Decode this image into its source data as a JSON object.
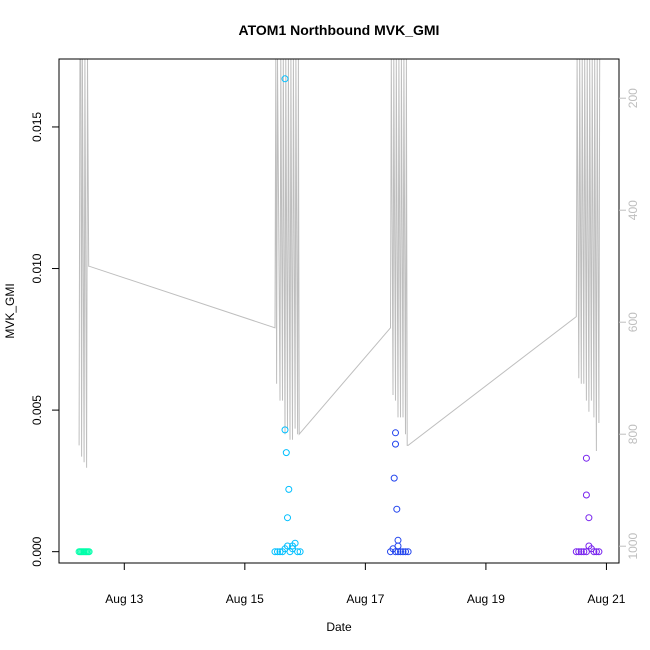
{
  "chart_data": {
    "type": "scatter",
    "title": "ATOM1 Northbound MVK_GMI",
    "xlabel": "Date",
    "ylabel": "MVK_GMI",
    "xlim": [
      "2024-08-11T22:00",
      "2024-08-21T05:00"
    ],
    "ylim": [
      -0.0004,
      0.0174
    ],
    "x_tick_labels": [
      "Aug 13",
      "Aug 15",
      "Aug 17",
      "Aug 19",
      "Aug 21"
    ],
    "x_ticks": [
      "2024-08-13T00:00",
      "2024-08-15T00:00",
      "2024-08-17T00:00",
      "2024-08-19T00:00",
      "2024-08-21T00:00"
    ],
    "y_ticks": [
      0.0,
      0.005,
      0.01,
      0.015
    ],
    "y_tick_labels": [
      "0.000",
      "0.005",
      "0.010",
      "0.015"
    ],
    "grid": false,
    "legend": "none",
    "series": [
      {
        "color": "#00ffaa",
        "points": [
          [
            "2024-08-12T06:00",
            0.0
          ],
          [
            "2024-08-12T06:30",
            0.0
          ],
          [
            "2024-08-12T07:00",
            0.0
          ],
          [
            "2024-08-12T07:30",
            0.0
          ],
          [
            "2024-08-12T08:00",
            0.0
          ],
          [
            "2024-08-12T08:30",
            0.0
          ],
          [
            "2024-08-12T09:00",
            0.0
          ],
          [
            "2024-08-12T09:30",
            0.0
          ],
          [
            "2024-08-12T10:00",
            0.0
          ]
        ]
      },
      {
        "color": "#00bfff",
        "points": [
          [
            "2024-08-15T12:00",
            0.0
          ],
          [
            "2024-08-15T13:00",
            0.0
          ],
          [
            "2024-08-15T14:00",
            0.0
          ],
          [
            "2024-08-15T15:00",
            0.0
          ],
          [
            "2024-08-15T16:00",
            0.0001
          ],
          [
            "2024-08-15T17:00",
            0.0002
          ],
          [
            "2024-08-15T18:00",
            0.0
          ],
          [
            "2024-08-15T19:00",
            0.0001
          ],
          [
            "2024-08-15T20:00",
            0.0003
          ],
          [
            "2024-08-15T21:00",
            0.0
          ],
          [
            "2024-08-15T22:00",
            0.0
          ],
          [
            "2024-08-15T16:00",
            0.0043
          ],
          [
            "2024-08-15T16:30",
            0.0035
          ],
          [
            "2024-08-15T17:30",
            0.0022
          ],
          [
            "2024-08-15T17:00",
            0.0012
          ],
          [
            "2024-08-15T16:00",
            0.0167
          ],
          [
            "2024-08-15T19:00",
            0.0002
          ]
        ]
      },
      {
        "color": "#2244ee",
        "points": [
          [
            "2024-08-17T10:00",
            0.0
          ],
          [
            "2024-08-17T11:00",
            0.0001
          ],
          [
            "2024-08-17T12:00",
            0.0
          ],
          [
            "2024-08-17T13:00",
            0.0
          ],
          [
            "2024-08-17T14:00",
            0.0
          ],
          [
            "2024-08-17T15:00",
            0.0
          ],
          [
            "2024-08-17T16:00",
            0.0
          ],
          [
            "2024-08-17T17:00",
            0.0
          ],
          [
            "2024-08-17T12:00",
            0.0042
          ],
          [
            "2024-08-17T12:00",
            0.0038
          ],
          [
            "2024-08-17T11:30",
            0.0026
          ],
          [
            "2024-08-17T12:30",
            0.0015
          ],
          [
            "2024-08-17T13:00",
            0.0004
          ],
          [
            "2024-08-17T13:00",
            0.0002
          ]
        ]
      },
      {
        "color": "#7722ee",
        "points": [
          [
            "2024-08-20T12:00",
            0.0
          ],
          [
            "2024-08-20T13:00",
            0.0
          ],
          [
            "2024-08-20T14:00",
            0.0
          ],
          [
            "2024-08-20T15:00",
            0.0
          ],
          [
            "2024-08-20T16:00",
            0.0
          ],
          [
            "2024-08-20T17:00",
            0.0002
          ],
          [
            "2024-08-20T18:00",
            0.0001
          ],
          [
            "2024-08-20T19:00",
            0.0
          ],
          [
            "2024-08-20T20:00",
            0.0
          ],
          [
            "2024-08-20T21:00",
            0.0
          ],
          [
            "2024-08-20T16:00",
            0.0033
          ],
          [
            "2024-08-20T16:00",
            0.002
          ],
          [
            "2024-08-20T17:00",
            0.0012
          ]
        ]
      }
    ],
    "secondary_axis": {
      "side": "right",
      "color": "#bebebe",
      "ylim": [
        1030,
        130
      ],
      "ticks": [
        200,
        400,
        600,
        800,
        1000
      ],
      "tick_labels": [
        "200",
        "400",
        "600",
        "800",
        "1000"
      ],
      "line": [
        [
          "2024-08-12T06:00",
          820
        ],
        [
          "2024-08-12T06:20",
          130
        ],
        [
          "2024-08-12T06:40",
          130
        ],
        [
          "2024-08-12T07:00",
          840
        ],
        [
          "2024-08-12T07:20",
          130
        ],
        [
          "2024-08-12T08:00",
          850
        ],
        [
          "2024-08-12T08:20",
          130
        ],
        [
          "2024-08-12T09:00",
          860
        ],
        [
          "2024-08-12T09:20",
          130
        ],
        [
          "2024-08-12T09:50",
          500
        ],
        [
          "2024-08-12T10:00",
          500
        ],
        [
          "2024-08-15T12:00",
          610
        ],
        [
          "2024-08-15T12:20",
          130
        ],
        [
          "2024-08-15T12:40",
          710
        ],
        [
          "2024-08-15T13:00",
          130
        ],
        [
          "2024-08-15T14:00",
          740
        ],
        [
          "2024-08-15T14:20",
          130
        ],
        [
          "2024-08-15T15:00",
          740
        ],
        [
          "2024-08-15T15:20",
          130
        ],
        [
          "2024-08-15T16:00",
          800
        ],
        [
          "2024-08-15T16:20",
          130
        ],
        [
          "2024-08-15T17:00",
          790
        ],
        [
          "2024-08-15T17:20",
          130
        ],
        [
          "2024-08-15T18:00",
          810
        ],
        [
          "2024-08-15T18:20",
          130
        ],
        [
          "2024-08-15T19:00",
          810
        ],
        [
          "2024-08-15T19:20",
          130
        ],
        [
          "2024-08-15T20:00",
          790
        ],
        [
          "2024-08-15T20:20",
          130
        ],
        [
          "2024-08-15T21:00",
          800
        ],
        [
          "2024-08-15T21:20",
          130
        ],
        [
          "2024-08-15T21:40",
          800
        ],
        [
          "2024-08-17T10:00",
          610
        ],
        [
          "2024-08-17T10:20",
          130
        ],
        [
          "2024-08-17T11:00",
          730
        ],
        [
          "2024-08-17T11:20",
          130
        ],
        [
          "2024-08-17T12:00",
          740
        ],
        [
          "2024-08-17T12:20",
          130
        ],
        [
          "2024-08-17T13:00",
          770
        ],
        [
          "2024-08-17T13:20",
          130
        ],
        [
          "2024-08-17T14:00",
          770
        ],
        [
          "2024-08-17T14:20",
          130
        ],
        [
          "2024-08-17T15:00",
          770
        ],
        [
          "2024-08-17T15:20",
          130
        ],
        [
          "2024-08-17T16:00",
          800
        ],
        [
          "2024-08-17T16:20",
          130
        ],
        [
          "2024-08-17T16:40",
          820
        ],
        [
          "2024-08-17T17:00",
          820
        ],
        [
          "2024-08-20T12:00",
          590
        ],
        [
          "2024-08-20T12:20",
          130
        ],
        [
          "2024-08-20T13:00",
          700
        ],
        [
          "2024-08-20T13:20",
          130
        ],
        [
          "2024-08-20T14:00",
          710
        ],
        [
          "2024-08-20T14:20",
          130
        ],
        [
          "2024-08-20T15:00",
          710
        ],
        [
          "2024-08-20T15:20",
          130
        ],
        [
          "2024-08-20T16:00",
          740
        ],
        [
          "2024-08-20T16:20",
          130
        ],
        [
          "2024-08-20T17:00",
          760
        ],
        [
          "2024-08-20T17:20",
          130
        ],
        [
          "2024-08-20T18:00",
          740
        ],
        [
          "2024-08-20T18:20",
          130
        ],
        [
          "2024-08-20T19:00",
          770
        ],
        [
          "2024-08-20T19:20",
          130
        ],
        [
          "2024-08-20T20:00",
          830
        ],
        [
          "2024-08-20T20:20",
          130
        ],
        [
          "2024-08-20T21:00",
          780
        ],
        [
          "2024-08-20T21:20",
          130
        ]
      ]
    }
  }
}
